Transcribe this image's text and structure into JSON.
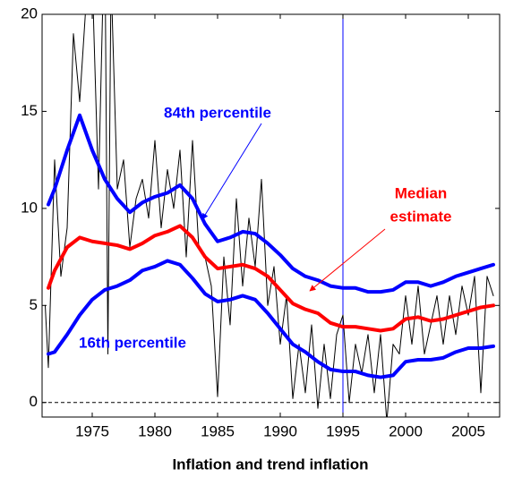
{
  "chart_data": {
    "type": "line",
    "xlabel": "Inflation and trend inflation",
    "xlim": [
      1971,
      2007.5
    ],
    "ylim": [
      -0.75,
      20
    ],
    "xticks": [
      1975,
      1980,
      1985,
      1990,
      1995,
      2000,
      2005
    ],
    "yticks": [
      0,
      5,
      10,
      15,
      20
    ],
    "reference_line": 0,
    "vlines": [
      1971,
      1995
    ],
    "vline_color": "#0000ff",
    "annotations": {
      "p84": "84th percentile",
      "median": [
        "Median",
        "estimate"
      ],
      "p16": "16th percentile"
    },
    "series": [
      {
        "color": "#000000",
        "width": 1,
        "x": [
          1971.25,
          1971.5,
          1972,
          1972.5,
          1973,
          1973.5,
          1974,
          1974.5,
          1975,
          1975.5,
          1976,
          1976.25,
          1976.5,
          1977,
          1977.5,
          1978,
          1978.5,
          1979,
          1979.5,
          1980,
          1980.5,
          1981,
          1981.5,
          1982,
          1982.5,
          1983,
          1983.5,
          1984,
          1984.5,
          1985,
          1985.5,
          1986,
          1986.5,
          1987,
          1987.5,
          1988,
          1988.5,
          1989,
          1989.5,
          1990,
          1990.5,
          1991,
          1991.5,
          1992,
          1992.5,
          1993,
          1993.5,
          1994,
          1994.5,
          1995,
          1995.5,
          1996,
          1996.5,
          1997,
          1997.5,
          1998,
          1998.5,
          1999,
          1999.5,
          2000,
          2000.5,
          2001,
          2001.5,
          2002,
          2002.5,
          2003,
          2003.5,
          2004,
          2004.5,
          2005,
          2005.5,
          2006,
          2006.5,
          2007
        ],
        "values": [
          5,
          1.8,
          12.5,
          6.5,
          9,
          19,
          15.5,
          20.5,
          22,
          11,
          25,
          2.5,
          22,
          11,
          12.5,
          8,
          10.5,
          11.5,
          9.5,
          13.5,
          9,
          12,
          10,
          13,
          7.5,
          13.5,
          8,
          7.5,
          6,
          0.3,
          7.5,
          4,
          10.5,
          6,
          9.5,
          7,
          11.5,
          5,
          7,
          3,
          5.5,
          0.2,
          3,
          0.5,
          4,
          -0.3,
          3,
          0.2,
          3.5,
          4.5,
          0,
          3,
          1.5,
          3.5,
          0.5,
          3.5,
          -1,
          3,
          2.5,
          5.5,
          3,
          6,
          2.5,
          4,
          5.5,
          3,
          5.5,
          3.5,
          6,
          4.5,
          6.5,
          0.5,
          6.5,
          5.5
        ]
      },
      {
        "color": "#0000ff",
        "width": 4,
        "x": [
          1971.5,
          1972,
          1973,
          1974,
          1975,
          1976,
          1977,
          1978,
          1979,
          1980,
          1981,
          1982,
          1983,
          1984,
          1985,
          1986,
          1987,
          1988,
          1989,
          1990,
          1991,
          1992,
          1993,
          1994,
          1995,
          1996,
          1997,
          1998,
          1999,
          2000,
          2001,
          2002,
          2003,
          2004,
          2005,
          2006,
          2007
        ],
        "values": [
          10.2,
          11,
          13,
          14.8,
          13,
          11.5,
          10.5,
          9.8,
          10.3,
          10.6,
          10.8,
          11.2,
          10.5,
          9.2,
          8.3,
          8.5,
          8.8,
          8.7,
          8.2,
          7.6,
          6.9,
          6.5,
          6.3,
          6.0,
          5.9,
          5.9,
          5.7,
          5.7,
          5.8,
          6.2,
          6.2,
          6.0,
          6.2,
          6.5,
          6.7,
          6.9,
          7.1
        ]
      },
      {
        "color": "#ff0000",
        "width": 4,
        "x": [
          1971.5,
          1972,
          1973,
          1974,
          1975,
          1976,
          1977,
          1978,
          1979,
          1980,
          1981,
          1982,
          1983,
          1984,
          1985,
          1986,
          1987,
          1988,
          1989,
          1990,
          1991,
          1992,
          1993,
          1994,
          1995,
          1996,
          1997,
          1998,
          1999,
          2000,
          2001,
          2002,
          2003,
          2004,
          2005,
          2006,
          2007
        ],
        "values": [
          5.9,
          6.8,
          8.0,
          8.5,
          8.3,
          8.2,
          8.1,
          7.9,
          8.2,
          8.6,
          8.8,
          9.1,
          8.5,
          7.5,
          6.9,
          7.0,
          7.1,
          6.9,
          6.5,
          5.8,
          5.1,
          4.8,
          4.6,
          4.1,
          3.9,
          3.9,
          3.8,
          3.7,
          3.8,
          4.3,
          4.4,
          4.2,
          4.3,
          4.5,
          4.7,
          4.9,
          5.0
        ]
      },
      {
        "color": "#0000ff",
        "width": 4,
        "x": [
          1971.5,
          1972,
          1973,
          1974,
          1975,
          1976,
          1977,
          1978,
          1979,
          1980,
          1981,
          1982,
          1983,
          1984,
          1985,
          1986,
          1987,
          1988,
          1989,
          1990,
          1991,
          1992,
          1993,
          1994,
          1995,
          1996,
          1997,
          1998,
          1999,
          2000,
          2001,
          2002,
          2003,
          2004,
          2005,
          2006,
          2007
        ],
        "values": [
          2.5,
          2.6,
          3.5,
          4.5,
          5.3,
          5.8,
          6.0,
          6.3,
          6.8,
          7.0,
          7.3,
          7.1,
          6.4,
          5.6,
          5.2,
          5.3,
          5.5,
          5.3,
          4.6,
          3.8,
          3.0,
          2.6,
          2.1,
          1.7,
          1.6,
          1.6,
          1.4,
          1.3,
          1.4,
          2.1,
          2.2,
          2.2,
          2.3,
          2.6,
          2.8,
          2.8,
          2.9
        ]
      }
    ]
  }
}
